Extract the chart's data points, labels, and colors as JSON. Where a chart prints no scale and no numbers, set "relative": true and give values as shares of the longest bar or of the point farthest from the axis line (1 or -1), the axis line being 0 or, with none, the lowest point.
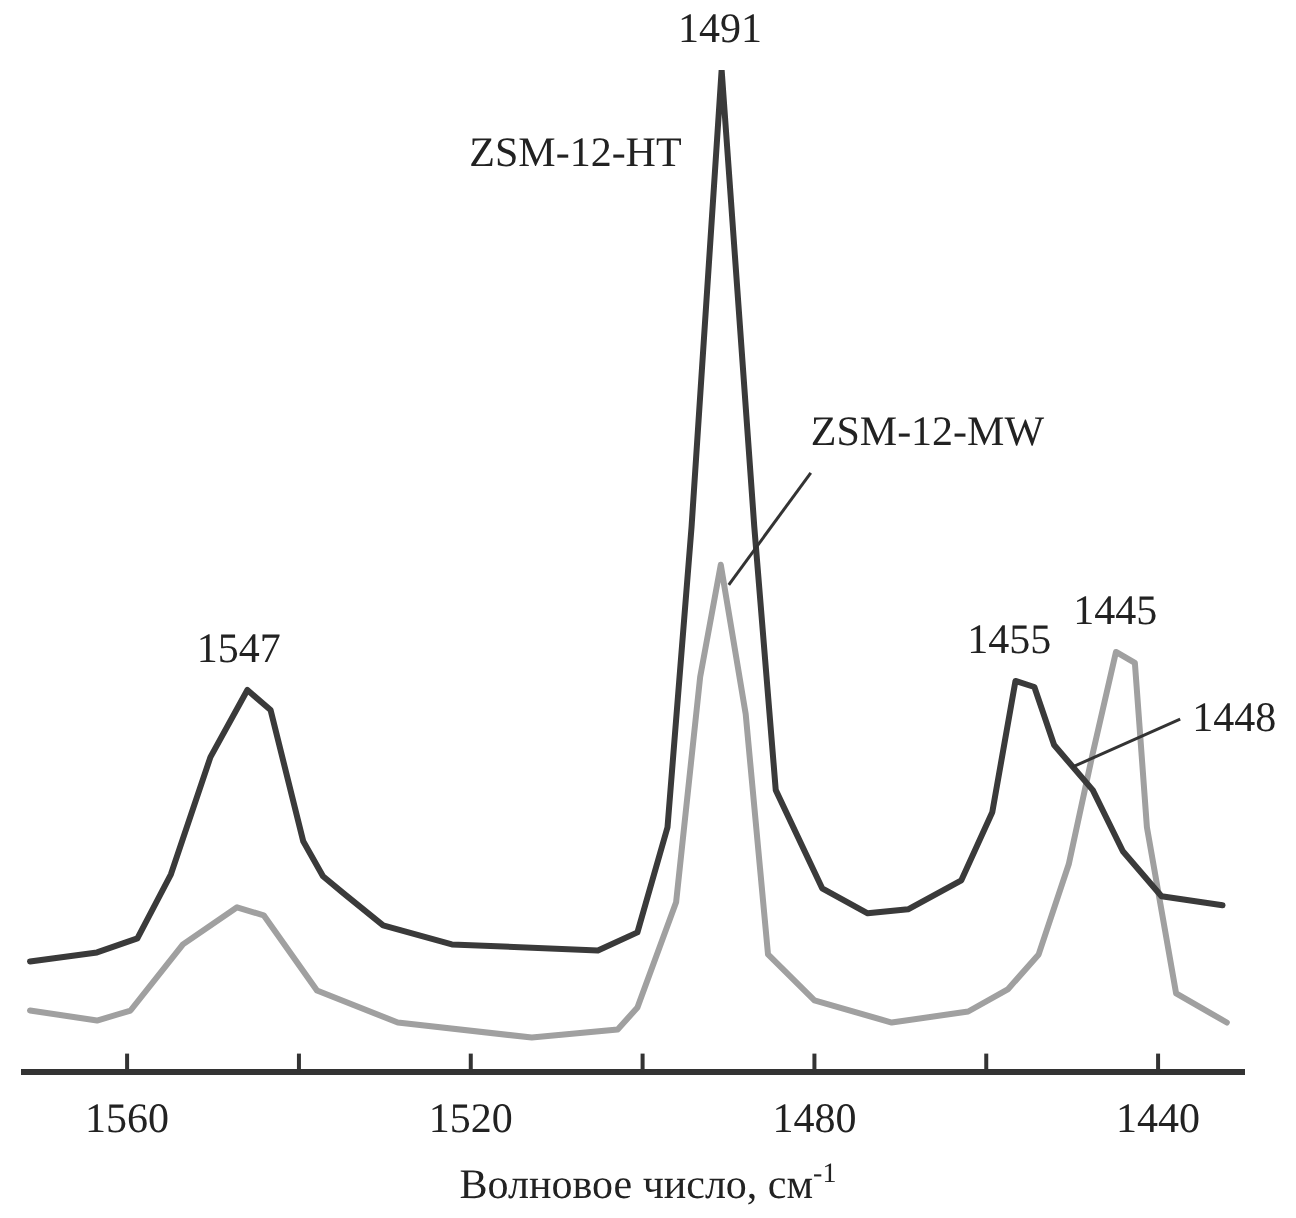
{
  "chart_data": {
    "type": "line",
    "relative": true,
    "xlabel": "Волновое число, см$^{-1}$",
    "xlim": [
      1572,
      1430
    ],
    "xticks": [
      1560,
      {
        "value": 1540,
        "label": null
      },
      1520,
      {
        "value": 1500,
        "label": null
      },
      1480,
      {
        "value": 1460,
        "label": null
      },
      1440
    ],
    "grid": false,
    "legend": false,
    "marker": "none",
    "line_style": "solid",
    "series": [
      {
        "name": "ZSM-12-HT",
        "color": "#3a3a3a",
        "x": [
          1571.3,
          1563.5,
          1558.8,
          1554.9,
          1550.3,
          1546.0,
          1543.3,
          1539.5,
          1537.2,
          1534.8,
          1530.2,
          1522.2,
          1505.2,
          1500.6,
          1497.1,
          1494.3,
          1490.8,
          1487.0,
          1484.5,
          1479.1,
          1473.8,
          1469.1,
          1462.9,
          1459.3,
          1456.6,
          1454.4,
          1452.1,
          1447.6,
          1444.1,
          1439.6,
          1432.5
        ],
        "values": [
          0.11,
          0.119,
          0.133,
          0.197,
          0.314,
          0.381,
          0.361,
          0.23,
          0.195,
          0.178,
          0.146,
          0.127,
          0.121,
          0.139,
          0.244,
          0.544,
          1.0,
          0.544,
          0.281,
          0.183,
          0.158,
          0.162,
          0.191,
          0.259,
          0.39,
          0.384,
          0.326,
          0.281,
          0.22,
          0.175,
          0.166
        ]
      },
      {
        "name": "ZSM-12-MW",
        "color": "#a0a0a0",
        "x": [
          1571.3,
          1563.5,
          1559.6,
          1553.5,
          1547.2,
          1544.1,
          1537.9,
          1528.5,
          1512.9,
          1502.9,
          1500.6,
          1496.1,
          1493.3,
          1490.9,
          1488.0,
          1485.4,
          1480.0,
          1471.0,
          1462.1,
          1457.5,
          1453.9,
          1450.4,
          1447.6,
          1444.9,
          1442.7,
          1441.3,
          1437.9,
          1432.0
        ],
        "values": [
          0.061,
          0.051,
          0.061,
          0.127,
          0.164,
          0.156,
          0.081,
          0.049,
          0.034,
          0.042,
          0.064,
          0.169,
          0.394,
          0.506,
          0.357,
          0.117,
          0.071,
          0.049,
          0.06,
          0.082,
          0.117,
          0.207,
          0.318,
          0.419,
          0.408,
          0.244,
          0.078,
          0.049
        ]
      }
    ],
    "annotations": [
      {
        "text": "1547",
        "x": 1547,
        "y": 0.381
      },
      {
        "text": "1491",
        "x": 1491,
        "y": 1.0
      },
      {
        "text": "1455",
        "x": 1455,
        "y": 0.39
      },
      {
        "text": "1445",
        "x": 1445,
        "y": 0.419
      },
      {
        "text": "1448",
        "x": 1450,
        "y": 0.304
      }
    ]
  }
}
